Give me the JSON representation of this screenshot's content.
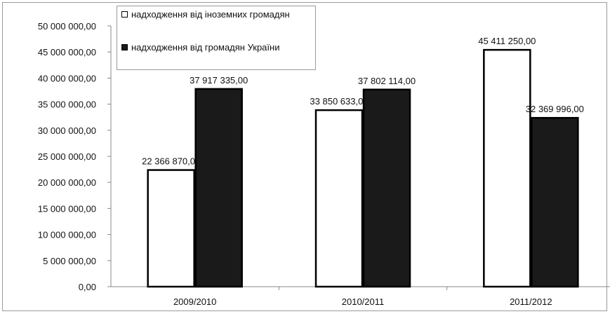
{
  "chart_data": {
    "type": "bar",
    "categories": [
      "2009/2010",
      "2010/2011",
      "2011/2012"
    ],
    "series": [
      {
        "name": "надходження від іноземних громадян",
        "values": [
          22366870.0,
          33850633.0,
          45411250.0
        ],
        "fill": "#ffffff",
        "stroke": "#000000"
      },
      {
        "name": "надходження від громадян України",
        "values": [
          37917335.0,
          37802114.0,
          32369996.0
        ],
        "fill": "#1a1a1a",
        "stroke": "#000000"
      }
    ],
    "data_labels": [
      [
        "22 366 870,00",
        "33 850 633,00",
        "45 411 250,00"
      ],
      [
        "37 917 335,00",
        "37 802 114,00",
        "32 369 996,00"
      ]
    ],
    "yticks": [
      "0,00",
      "5 000 000,00",
      "10 000 000,00",
      "15 000 000,00",
      "20 000 000,00",
      "25 000 000,00",
      "30 000 000,00",
      "35 000 000,00",
      "40 000 000,00",
      "45 000 000,00",
      "50 000 000,00"
    ],
    "ylim": [
      0,
      50000000
    ],
    "ystep": 5000000,
    "grid": false,
    "legend_position": "top-left",
    "title": "",
    "xlabel": "",
    "ylabel": ""
  }
}
